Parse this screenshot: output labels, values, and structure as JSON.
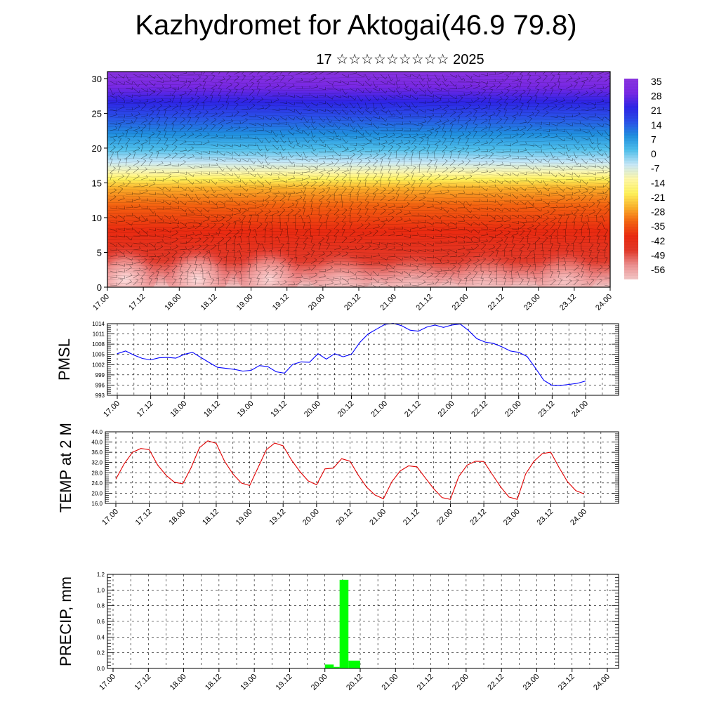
{
  "page": {
    "title": "Kazhydromet for Aktogai(46.9 79.8)",
    "subtitle": "17 ☆☆☆☆☆☆☆☆☆ 2025"
  },
  "time_labels": [
    "17.00",
    "17.12",
    "18.00",
    "18.12",
    "19.00",
    "19.12",
    "20.00",
    "20.12",
    "21.00",
    "21.12",
    "22.00",
    "22.12",
    "23.00",
    "23.12",
    "24.00"
  ],
  "chart_data": [
    {
      "type": "heatmap",
      "name": "cross-section",
      "y_ticks": [
        0,
        5,
        10,
        15,
        20,
        25,
        30
      ],
      "ylim": [
        0,
        31
      ],
      "x_ticks": [
        "17.00",
        "17.12",
        "18.00",
        "18.12",
        "19.00",
        "19.12",
        "20.00",
        "20.12",
        "21.00",
        "21.12",
        "22.00",
        "22.12",
        "23.00",
        "23.12",
        "24.00"
      ],
      "colorbar_labels": [
        "35",
        "28",
        "21",
        "14",
        "7",
        "0",
        "-7",
        "-14",
        "-21",
        "-28",
        "-35",
        "-42",
        "-49",
        "-56"
      ],
      "color_stops": [
        "#f4c8c8",
        "#ec9090",
        "#e23a2a",
        "#ea2a10",
        "#f46210",
        "#fbb02a",
        "#fff25a",
        "#fff8a8",
        "#c8e8f8",
        "#50c0ec",
        "#2090e0",
        "#2a50e8",
        "#2e24e6",
        "#7828e4",
        "#8a34e0"
      ],
      "warm_blob_centers": [
        "17.06",
        "18.06",
        "19.06",
        "20.06",
        "21.06",
        "22.06",
        "23.09"
      ],
      "warm_blob_strength": [
        1.0,
        1.0,
        0.9,
        0.45,
        0.3,
        0.35,
        0.55
      ]
    },
    {
      "type": "line",
      "name": "pmsl",
      "ylabel": "PMSL",
      "color": "#0000ff",
      "ylim": [
        993,
        1014
      ],
      "y_ticks": [
        "1014",
        "1011",
        "1008",
        "1005",
        "1002",
        "999",
        "996",
        "993"
      ],
      "x_ticks": [
        "17.00",
        "17.12",
        "18.00",
        "18.12",
        "19.00",
        "19.12",
        "20.00",
        "20.12",
        "21.00",
        "21.12",
        "22.00",
        "22.12",
        "23.00",
        "23.12",
        "24.00"
      ],
      "x_hours": [
        0,
        3,
        6,
        9,
        12,
        15,
        18,
        21,
        24,
        27,
        30,
        33,
        36,
        39,
        42,
        45,
        48,
        51,
        54,
        57,
        60,
        63,
        66,
        69,
        72,
        75,
        78,
        81,
        84,
        87,
        90,
        93,
        96,
        99,
        102,
        105,
        108,
        111,
        114,
        117,
        120,
        123,
        126,
        129,
        132,
        135,
        138,
        141,
        144,
        147,
        150,
        153,
        156,
        159,
        162,
        165,
        168
      ],
      "values": [
        1005.2,
        1006.0,
        1004.8,
        1003.8,
        1003.4,
        1004.0,
        1004.1,
        1003.9,
        1005.0,
        1005.6,
        1004.1,
        1002.6,
        1001.2,
        1000.9,
        1000.6,
        1000.1,
        1000.3,
        1001.7,
        1001.4,
        999.9,
        999.5,
        1002.1,
        1002.8,
        1002.7,
        1005.2,
        1003.6,
        1005.2,
        1004.3,
        1005.0,
        1008.5,
        1011.0,
        1012.4,
        1013.8,
        1014.1,
        1013.4,
        1012.1,
        1011.8,
        1013.0,
        1013.6,
        1012.9,
        1013.6,
        1013.9,
        1012.0,
        1009.6,
        1008.6,
        1008.2,
        1007.2,
        1006.0,
        1005.6,
        1004.4,
        1001.0,
        997.4,
        995.9,
        995.9,
        996.2,
        996.5,
        997.2
      ]
    },
    {
      "type": "line",
      "name": "temp",
      "ylabel": "TEMP at 2 M",
      "color": "#e00000",
      "ylim": [
        16,
        44
      ],
      "y_ticks": [
        "44.0",
        "40.0",
        "36.0",
        "32.0",
        "28.0",
        "24.0",
        "20.0",
        "16.0"
      ],
      "x_ticks": [
        "17.00",
        "17.12",
        "18.00",
        "18.12",
        "19.00",
        "19.12",
        "20.00",
        "20.12",
        "21.00",
        "21.12",
        "22.00",
        "22.12",
        "23.00",
        "23.12",
        "24.00"
      ],
      "x_hours": [
        0,
        3,
        6,
        9,
        12,
        15,
        18,
        21,
        24,
        27,
        30,
        33,
        36,
        39,
        42,
        45,
        48,
        51,
        54,
        57,
        60,
        63,
        66,
        69,
        72,
        75,
        78,
        81,
        84,
        87,
        90,
        93,
        96,
        99,
        102,
        105,
        108,
        111,
        114,
        117,
        120,
        123,
        126,
        129,
        132,
        135,
        138,
        141,
        144,
        147,
        150,
        153,
        156,
        159,
        162,
        165,
        168
      ],
      "values": [
        25.5,
        31.5,
        36.0,
        37.5,
        37.0,
        31.0,
        27.0,
        24.3,
        23.7,
        30.0,
        37.8,
        40.5,
        39.5,
        32.5,
        27.5,
        24.0,
        23.0,
        30.0,
        37.0,
        39.6,
        38.5,
        33.0,
        28.5,
        24.8,
        23.3,
        29.5,
        29.8,
        33.5,
        32.5,
        27.0,
        22.3,
        19.3,
        17.8,
        24.5,
        28.7,
        30.7,
        30.3,
        26.0,
        21.8,
        18.3,
        17.6,
        26.5,
        31.0,
        32.5,
        32.4,
        27.4,
        22.5,
        18.5,
        17.6,
        27.5,
        32.5,
        35.5,
        36.0,
        30.0,
        24.5,
        21.0,
        19.7
      ]
    },
    {
      "type": "bar",
      "name": "precip",
      "ylabel": "PRECIP, mm",
      "color": "#00ff00",
      "ylim": [
        0,
        1.2
      ],
      "y_ticks": [
        "1.2",
        "1.0",
        "0.8",
        "0.6",
        "0.4",
        "0.2",
        "0.0"
      ],
      "x_ticks": [
        "17.00",
        "17.12",
        "18.00",
        "18.12",
        "19.00",
        "19.12",
        "20.00",
        "20.12",
        "21.00",
        "21.12",
        "22.00",
        "22.12",
        "23.00",
        "23.12",
        "24.00"
      ],
      "bars": [
        {
          "start_hour": 72,
          "end_hour": 75,
          "value": 0.05
        },
        {
          "start_hour": 75,
          "end_hour": 77,
          "value": 0.02
        },
        {
          "start_hour": 77,
          "end_hour": 80,
          "value": 1.13
        },
        {
          "start_hour": 80,
          "end_hour": 84,
          "value": 0.1
        }
      ]
    }
  ]
}
